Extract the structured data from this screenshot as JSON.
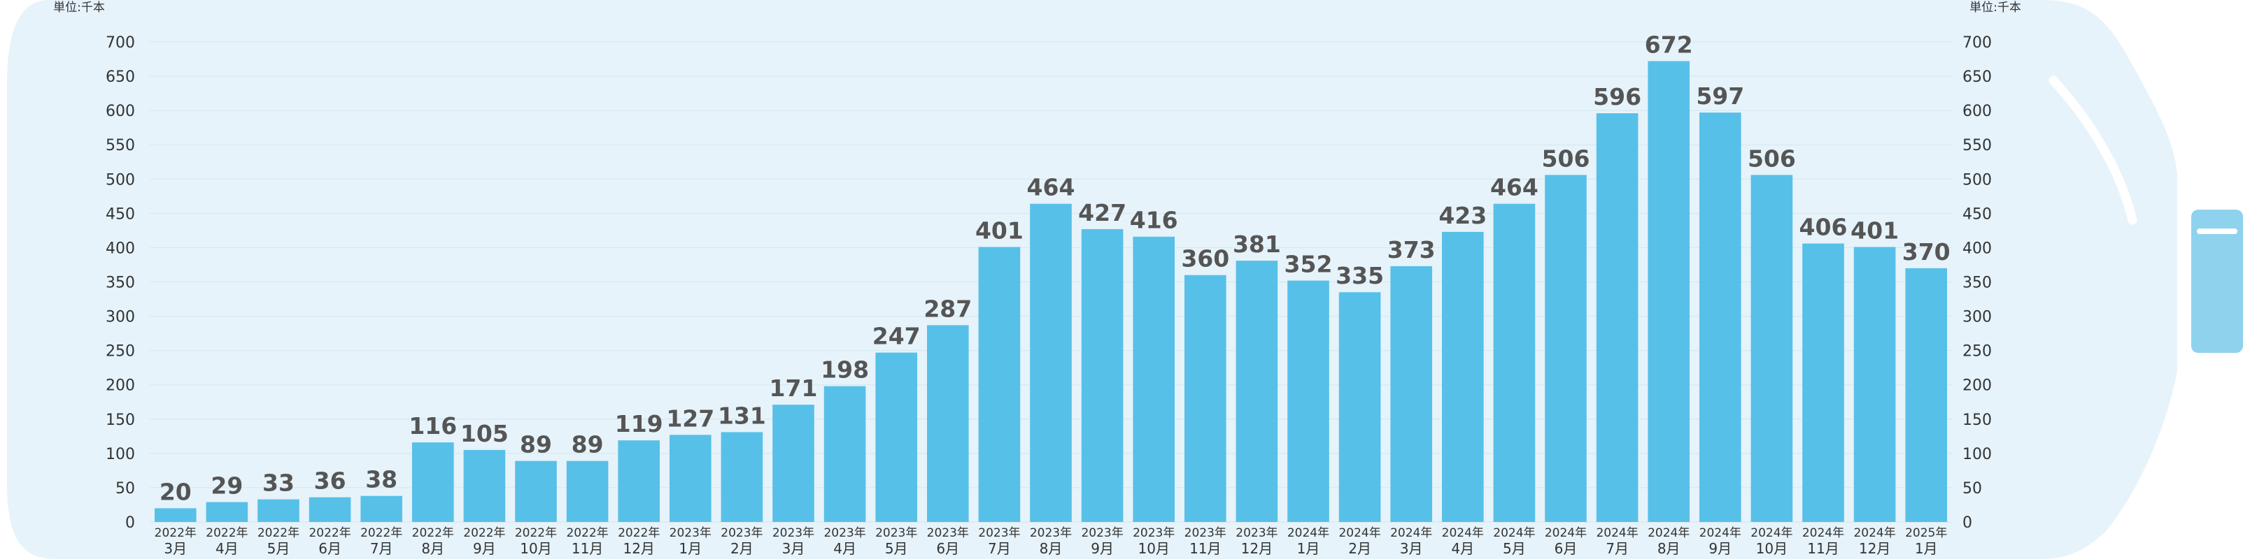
{
  "unit_label": "単位:千本",
  "chart_data": {
    "type": "bar",
    "unit": "単位:千本",
    "categories": [
      [
        "2022年",
        "3月"
      ],
      [
        "2022年",
        "4月"
      ],
      [
        "2022年",
        "5月"
      ],
      [
        "2022年",
        "6月"
      ],
      [
        "2022年",
        "7月"
      ],
      [
        "2022年",
        "8月"
      ],
      [
        "2022年",
        "9月"
      ],
      [
        "2022年",
        "10月"
      ],
      [
        "2022年",
        "11月"
      ],
      [
        "2022年",
        "12月"
      ],
      [
        "2023年",
        "1月"
      ],
      [
        "2023年",
        "2月"
      ],
      [
        "2023年",
        "3月"
      ],
      [
        "2023年",
        "4月"
      ],
      [
        "2023年",
        "5月"
      ],
      [
        "2023年",
        "6月"
      ],
      [
        "2023年",
        "7月"
      ],
      [
        "2023年",
        "8月"
      ],
      [
        "2023年",
        "9月"
      ],
      [
        "2023年",
        "10月"
      ],
      [
        "2023年",
        "11月"
      ],
      [
        "2023年",
        "12月"
      ],
      [
        "2024年",
        "1月"
      ],
      [
        "2024年",
        "2月"
      ],
      [
        "2024年",
        "3月"
      ],
      [
        "2024年",
        "4月"
      ],
      [
        "2024年",
        "5月"
      ],
      [
        "2024年",
        "6月"
      ],
      [
        "2024年",
        "7月"
      ],
      [
        "2024年",
        "8月"
      ],
      [
        "2024年",
        "9月"
      ],
      [
        "2024年",
        "10月"
      ],
      [
        "2024年",
        "11月"
      ],
      [
        "2024年",
        "12月"
      ],
      [
        "2025年",
        "1月"
      ]
    ],
    "values": [
      20,
      29,
      33,
      36,
      38,
      116,
      105,
      89,
      89,
      119,
      127,
      131,
      171,
      198,
      247,
      287,
      401,
      464,
      427,
      416,
      360,
      381,
      352,
      335,
      373,
      423,
      464,
      506,
      596,
      672,
      597,
      506,
      406,
      401,
      370
    ],
    "ylim": [
      0,
      700
    ],
    "yticks": [
      0,
      50,
      100,
      150,
      200,
      250,
      300,
      350,
      400,
      450,
      500,
      550,
      600,
      650,
      700
    ],
    "grid": true,
    "bar_color": "#57c0e8",
    "background_color": "#e6f3fa",
    "cap_color": "#8fd2ee",
    "value_label_color": "#555555"
  }
}
